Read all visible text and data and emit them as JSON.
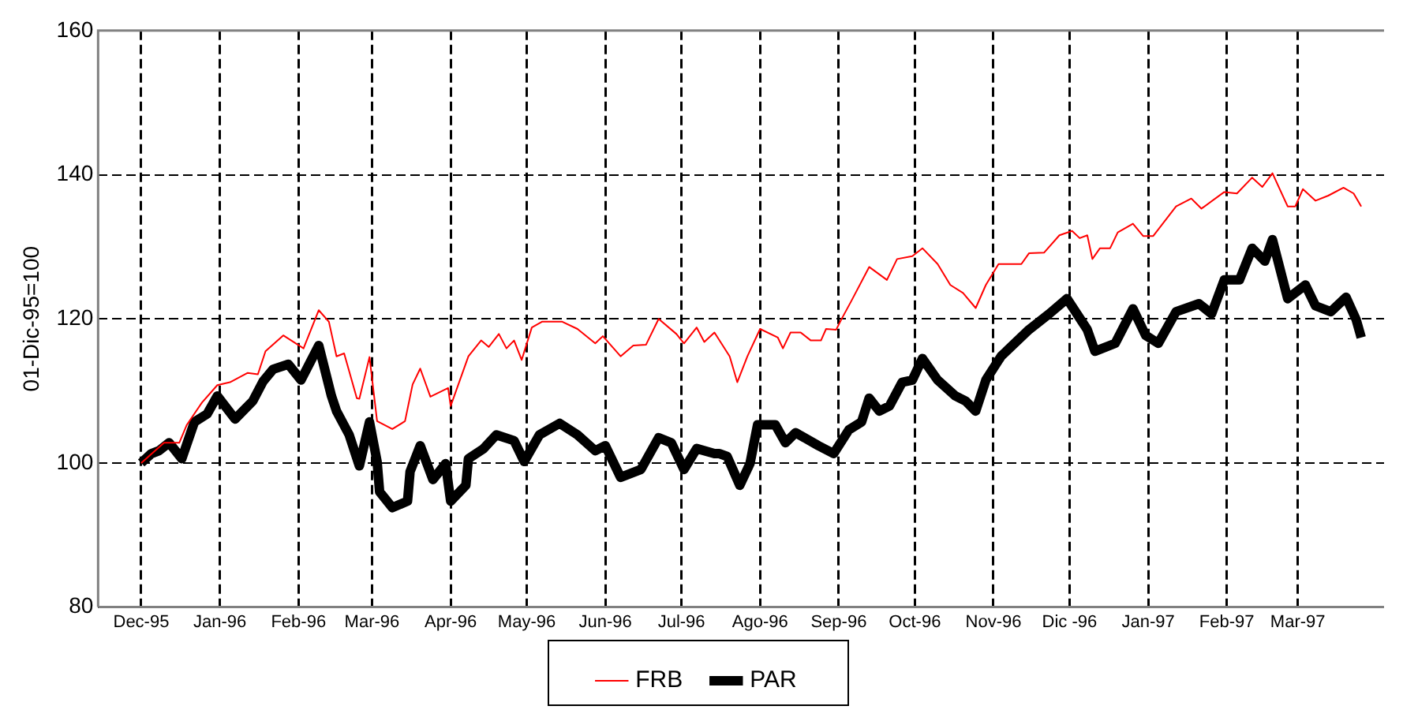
{
  "chart_data": {
    "type": "line",
    "ylabel": "01-Dic-95=100",
    "legend": "bottom",
    "grid": true,
    "line_style": "dashed",
    "marker": "none",
    "xlim": [
      "1995-11-14",
      "1997-04-04"
    ],
    "ylim": [
      80,
      160
    ],
    "yticks": [
      80,
      100,
      120,
      140,
      160
    ],
    "xticks": [
      {
        "value": "1995-12-01",
        "label": "Dec-95"
      },
      {
        "value": "1996-01-01",
        "label": "Jan-96"
      },
      {
        "value": "1996-02-01",
        "label": "Feb-96"
      },
      {
        "value": "1996-03-01",
        "label": "Mar-96"
      },
      {
        "value": "1996-04-01",
        "label": "Apr-96"
      },
      {
        "value": "1996-05-01",
        "label": "May-96"
      },
      {
        "value": "1996-06-01",
        "label": "Jun-96"
      },
      {
        "value": "1996-07-01",
        "label": "Jul-96"
      },
      {
        "value": "1996-08-01",
        "label": "Ago-96"
      },
      {
        "value": "1996-09-01",
        "label": "Sep-96"
      },
      {
        "value": "1996-10-01",
        "label": "Oct-96"
      },
      {
        "value": "1996-11-01",
        "label": "Nov-96"
      },
      {
        "value": "1996-12-01",
        "label": "Dic -96"
      },
      {
        "value": "1997-01-01",
        "label": "Jan-97"
      },
      {
        "value": "1997-02-01",
        "label": "Feb-97"
      },
      {
        "value": "1997-03-01",
        "label": "Mar-97"
      }
    ],
    "series": [
      {
        "name": "FRB",
        "color": "#ff0000",
        "line_style": "solid",
        "x": [
          "1995-12-01",
          "1995-12-10",
          "1995-12-16",
          "1995-12-19",
          "1995-12-25",
          "1995-12-31",
          "1996-01-05",
          "1996-01-12",
          "1996-01-16",
          "1996-01-19",
          "1996-01-26",
          "1996-02-03",
          "1996-02-09",
          "1996-02-13",
          "1996-02-16",
          "1996-02-19",
          "1996-02-24",
          "1996-02-25",
          "1996-02-29",
          "1996-03-03",
          "1996-03-09",
          "1996-03-14",
          "1996-03-17",
          "1996-03-20",
          "1996-03-24",
          "1996-03-31",
          "1996-04-01",
          "1996-04-08",
          "1996-04-13",
          "1996-04-16",
          "1996-04-20",
          "1996-04-23",
          "1996-04-26",
          "1996-04-29",
          "1996-05-03",
          "1996-05-07",
          "1996-05-15",
          "1996-05-21",
          "1996-05-28",
          "1996-05-31",
          "1996-06-07",
          "1996-06-12",
          "1996-06-17",
          "1996-06-22",
          "1996-06-29",
          "1996-07-02",
          "1996-07-07",
          "1996-07-10",
          "1996-07-14",
          "1996-07-20",
          "1996-07-23",
          "1996-07-27",
          "1996-08-01",
          "1996-08-08",
          "1996-08-10",
          "1996-08-13",
          "1996-08-17",
          "1996-08-21",
          "1996-08-25",
          "1996-08-27",
          "1996-08-31",
          "1996-09-02",
          "1996-09-06",
          "1996-09-13",
          "1996-09-20",
          "1996-09-24",
          "1996-09-30",
          "1996-10-04",
          "1996-10-10",
          "1996-10-15",
          "1996-10-20",
          "1996-10-25",
          "1996-10-29",
          "1996-11-03",
          "1996-11-12",
          "1996-11-15",
          "1996-11-21",
          "1996-11-27",
          "1996-12-02",
          "1996-12-05",
          "1996-12-08",
          "1996-12-10",
          "1996-12-13",
          "1996-12-17",
          "1996-12-20",
          "1996-12-26",
          "1996-12-30",
          "1997-01-03",
          "1997-01-12",
          "1997-01-18",
          "1997-01-22",
          "1997-01-31",
          "1997-02-05",
          "1997-02-11",
          "1997-02-15",
          "1997-02-19",
          "1997-02-25",
          "1997-02-28",
          "1997-03-03",
          "1997-03-08",
          "1997-03-13",
          "1997-03-19",
          "1997-03-23",
          "1997-03-26"
        ],
        "values": [
          100,
          102.8,
          102.8,
          105.3,
          108.4,
          110.8,
          111.2,
          112.5,
          112.3,
          115.5,
          117.7,
          115.9,
          121.2,
          119.6,
          114.8,
          115.2,
          109,
          108.9,
          114.7,
          105.8,
          104.7,
          105.8,
          110.9,
          113.1,
          109.2,
          110.4,
          107.9,
          114.8,
          117,
          116.1,
          117.9,
          115.9,
          117,
          114.3,
          118.8,
          119.6,
          119.6,
          118.6,
          116.6,
          117.6,
          114.8,
          116.3,
          116.4,
          120,
          117.9,
          116.6,
          118.8,
          116.8,
          118.1,
          114.8,
          111.2,
          114.8,
          118.6,
          117.4,
          115.9,
          118.1,
          118.1,
          117,
          117,
          118.6,
          118.5,
          119.9,
          122.5,
          127.2,
          125.4,
          128.3,
          128.7,
          129.8,
          127.6,
          124.7,
          123.6,
          121.5,
          124.7,
          127.6,
          127.6,
          129.1,
          129.2,
          131.6,
          132.2,
          131.2,
          131.6,
          128.3,
          129.8,
          129.8,
          132,
          133.2,
          131.5,
          131.5,
          135.6,
          136.7,
          135.3,
          137.6,
          137.4,
          139.6,
          138.3,
          140.2,
          135.6,
          135.6,
          138,
          136.4,
          137.1,
          138.2,
          137.4,
          135.6
        ]
      },
      {
        "name": "PAR",
        "color": "#000000",
        "line_style": "solid",
        "x": [
          "1995-12-01",
          "1995-12-05",
          "1995-12-08",
          "1995-12-12",
          "1995-12-17",
          "1995-12-22",
          "1995-12-27",
          "1995-12-31",
          "1996-01-07",
          "1996-01-14",
          "1996-01-18",
          "1996-01-22",
          "1996-01-28",
          "1996-02-02",
          "1996-02-09",
          "1996-02-14",
          "1996-02-16",
          "1996-02-21",
          "1996-02-25",
          "1996-02-29",
          "1996-03-03",
          "1996-03-04",
          "1996-03-09",
          "1996-03-15",
          "1996-03-16",
          "1996-03-20",
          "1996-03-25",
          "1996-03-30",
          "1996-04-01",
          "1996-04-07",
          "1996-04-08",
          "1996-04-14",
          "1996-04-19",
          "1996-04-26",
          "1996-04-30",
          "1996-05-06",
          "1996-05-14",
          "1996-05-21",
          "1996-05-28",
          "1996-06-01",
          "1996-06-07",
          "1996-06-15",
          "1996-06-22",
          "1996-06-27",
          "1996-07-02",
          "1996-07-07",
          "1996-07-14",
          "1996-07-16",
          "1996-07-19",
          "1996-07-24",
          "1996-07-28",
          "1996-07-31",
          "1996-08-07",
          "1996-08-11",
          "1996-08-15",
          "1996-08-24",
          "1996-08-30",
          "1996-09-05",
          "1996-09-10",
          "1996-09-13",
          "1996-09-17",
          "1996-09-21",
          "1996-09-26",
          "1996-09-30",
          "1996-10-04",
          "1996-10-10",
          "1996-10-17",
          "1996-10-21",
          "1996-10-25",
          "1996-10-29",
          "1996-11-04",
          "1996-11-15",
          "1996-11-23",
          "1996-11-30",
          "1996-12-08",
          "1996-12-11",
          "1996-12-19",
          "1996-12-26",
          "1996-12-31",
          "1997-01-05",
          "1997-01-12",
          "1997-01-21",
          "1997-01-26",
          "1997-01-31",
          "1997-02-06",
          "1997-02-11",
          "1997-02-16",
          "1997-02-19",
          "1997-02-25",
          "1997-03-04",
          "1997-03-08",
          "1997-03-14",
          "1997-03-20",
          "1997-03-24",
          "1997-03-26"
        ],
        "values": [
          100,
          101.3,
          101.7,
          102.8,
          100.6,
          105.7,
          106.8,
          109.3,
          106.1,
          108.6,
          111.3,
          113,
          113.7,
          111.5,
          116.3,
          109.3,
          107.2,
          103.9,
          99.6,
          105.7,
          100.2,
          96,
          93.8,
          94.7,
          98.8,
          102.4,
          97.7,
          99.9,
          94.7,
          96.9,
          100.6,
          102,
          103.9,
          103.1,
          100.2,
          103.9,
          105.5,
          103.9,
          101.7,
          102.4,
          98,
          99.1,
          103.5,
          102.8,
          99.1,
          102,
          101.3,
          101.3,
          100.9,
          96.9,
          99.9,
          105.3,
          105.3,
          102.8,
          104.2,
          102.4,
          101.3,
          104.6,
          105.7,
          109,
          107.2,
          107.9,
          111.2,
          111.5,
          114.5,
          111.5,
          109.3,
          108.6,
          107.2,
          111.5,
          114.8,
          118.5,
          120.7,
          122.8,
          118.5,
          115.5,
          116.6,
          121.4,
          117.7,
          116.6,
          121,
          122.1,
          120.7,
          125.4,
          125.4,
          129.8,
          128,
          131,
          122.8,
          124.7,
          121.8,
          121,
          123,
          119.9,
          117.4
        ]
      }
    ]
  }
}
